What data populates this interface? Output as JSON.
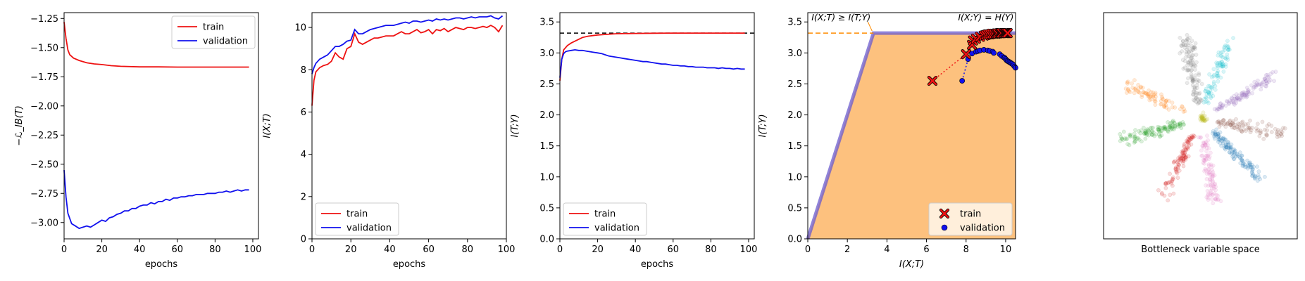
{
  "chart_data": [
    {
      "type": "line",
      "title": "",
      "xlabel": "epochs",
      "ylabel": "−ℒ_IB(T)",
      "xlim": [
        0,
        103
      ],
      "ylim": [
        -3.14,
        -1.2
      ],
      "xticks": [
        0,
        20,
        40,
        60,
        80,
        100
      ],
      "yticks": [
        -1.25,
        -1.5,
        -1.75,
        -2.0,
        -2.25,
        -2.5,
        -2.75,
        -3.0
      ],
      "ytick_labels": [
        "−1.25",
        "−1.50",
        "−1.75",
        "−2.00",
        "−2.25",
        "−2.50",
        "−2.75",
        "−3.00"
      ],
      "legend": "upper-right",
      "series": [
        {
          "name": "train",
          "color": "#ee1111",
          "x": [
            0,
            1,
            2,
            3,
            5,
            8,
            12,
            16,
            20,
            25,
            30,
            40,
            50,
            60,
            70,
            80,
            90,
            98
          ],
          "y": [
            -1.28,
            -1.42,
            -1.52,
            -1.56,
            -1.59,
            -1.61,
            -1.63,
            -1.64,
            -1.645,
            -1.655,
            -1.66,
            -1.665,
            -1.665,
            -1.667,
            -1.667,
            -1.667,
            -1.667,
            -1.667
          ]
        },
        {
          "name": "validation",
          "color": "#1111ee",
          "x": [
            0,
            1,
            2,
            4,
            6,
            8,
            10,
            12,
            14,
            16,
            18,
            20,
            22,
            24,
            26,
            28,
            30,
            32,
            34,
            36,
            38,
            40,
            42,
            44,
            46,
            48,
            50,
            52,
            54,
            56,
            58,
            60,
            62,
            64,
            66,
            68,
            70,
            72,
            74,
            76,
            78,
            80,
            82,
            84,
            86,
            88,
            90,
            92,
            94,
            96,
            98
          ],
          "y": [
            -2.55,
            -2.78,
            -2.92,
            -3.01,
            -3.03,
            -3.05,
            -3.04,
            -3.03,
            -3.04,
            -3.02,
            -3.0,
            -2.98,
            -2.99,
            -2.96,
            -2.95,
            -2.93,
            -2.92,
            -2.9,
            -2.9,
            -2.88,
            -2.88,
            -2.86,
            -2.85,
            -2.85,
            -2.83,
            -2.84,
            -2.82,
            -2.82,
            -2.8,
            -2.81,
            -2.79,
            -2.79,
            -2.78,
            -2.78,
            -2.77,
            -2.77,
            -2.76,
            -2.76,
            -2.76,
            -2.75,
            -2.75,
            -2.75,
            -2.74,
            -2.74,
            -2.73,
            -2.74,
            -2.73,
            -2.72,
            -2.73,
            -2.72,
            -2.72
          ]
        }
      ]
    },
    {
      "type": "line",
      "title": "",
      "xlabel": "epochs",
      "ylabel": "I(X;T)",
      "xlim": [
        0,
        100
      ],
      "ylim": [
        0,
        10.7
      ],
      "xticks": [
        0,
        20,
        40,
        60,
        80,
        100
      ],
      "yticks": [
        0,
        2,
        4,
        6,
        8,
        10
      ],
      "ytick_labels": [
        "0",
        "2",
        "4",
        "6",
        "8",
        "10"
      ],
      "legend": "lower-left",
      "series": [
        {
          "name": "train",
          "color": "#ee1111",
          "x": [
            0,
            1,
            2,
            4,
            6,
            8,
            10,
            12,
            14,
            16,
            18,
            20,
            22,
            24,
            26,
            28,
            30,
            32,
            34,
            36,
            38,
            40,
            42,
            44,
            46,
            48,
            50,
            52,
            54,
            56,
            58,
            60,
            62,
            64,
            66,
            68,
            70,
            72,
            74,
            76,
            78,
            80,
            82,
            84,
            86,
            88,
            90,
            92,
            94,
            96,
            98
          ],
          "y": [
            6.3,
            7.5,
            7.9,
            8.1,
            8.2,
            8.25,
            8.4,
            8.8,
            8.6,
            8.5,
            9.0,
            9.1,
            9.7,
            9.3,
            9.2,
            9.3,
            9.4,
            9.5,
            9.5,
            9.55,
            9.6,
            9.6,
            9.6,
            9.7,
            9.8,
            9.7,
            9.7,
            9.8,
            9.9,
            9.75,
            9.8,
            9.9,
            9.7,
            9.9,
            9.85,
            9.95,
            9.8,
            9.9,
            10.0,
            9.95,
            9.9,
            10.0,
            10.0,
            9.95,
            10.0,
            10.05,
            10.0,
            10.1,
            10.0,
            9.8,
            10.1
          ]
        },
        {
          "name": "validation",
          "color": "#1111ee",
          "x": [
            0,
            1,
            2,
            4,
            6,
            8,
            10,
            12,
            14,
            16,
            18,
            20,
            22,
            24,
            26,
            28,
            30,
            32,
            34,
            36,
            38,
            40,
            42,
            44,
            46,
            48,
            50,
            52,
            54,
            56,
            58,
            60,
            62,
            64,
            66,
            68,
            70,
            72,
            74,
            76,
            78,
            80,
            82,
            84,
            86,
            88,
            90,
            92,
            94,
            96,
            98
          ],
          "y": [
            7.8,
            8.1,
            8.3,
            8.5,
            8.6,
            8.7,
            8.9,
            9.1,
            9.1,
            9.2,
            9.35,
            9.4,
            9.9,
            9.7,
            9.7,
            9.8,
            9.9,
            9.95,
            10.0,
            10.05,
            10.1,
            10.1,
            10.1,
            10.15,
            10.2,
            10.25,
            10.2,
            10.3,
            10.3,
            10.25,
            10.3,
            10.35,
            10.3,
            10.4,
            10.35,
            10.4,
            10.35,
            10.4,
            10.45,
            10.45,
            10.4,
            10.45,
            10.5,
            10.45,
            10.5,
            10.5,
            10.5,
            10.55,
            10.45,
            10.4,
            10.55
          ]
        }
      ]
    },
    {
      "type": "line",
      "title": "",
      "xlabel": "epochs",
      "ylabel": "I(T;Y)",
      "xlim": [
        0,
        103
      ],
      "ylim": [
        0,
        3.65
      ],
      "xticks": [
        0,
        20,
        40,
        60,
        80,
        100
      ],
      "yticks": [
        0,
        0.5,
        1.0,
        1.5,
        2.0,
        2.5,
        3.0,
        3.5
      ],
      "ytick_labels": [
        "0.0",
        "0.5",
        "1.0",
        "1.5",
        "2.0",
        "2.5",
        "3.0",
        "3.5"
      ],
      "legend": "lower-left",
      "reference_line": {
        "y": 3.32,
        "style": "dashed",
        "color": "#000000"
      },
      "series": [
        {
          "name": "train",
          "color": "#ee1111",
          "x": [
            0,
            1,
            2,
            4,
            6,
            8,
            10,
            12,
            15,
            20,
            25,
            30,
            40,
            50,
            60,
            70,
            80,
            90,
            98
          ],
          "y": [
            2.55,
            2.9,
            3.05,
            3.12,
            3.16,
            3.19,
            3.22,
            3.25,
            3.27,
            3.29,
            3.3,
            3.31,
            3.315,
            3.318,
            3.32,
            3.32,
            3.32,
            3.32,
            3.32
          ]
        },
        {
          "name": "validation",
          "color": "#1111ee",
          "x": [
            0,
            1,
            2,
            3,
            4,
            6,
            8,
            10,
            12,
            14,
            16,
            18,
            20,
            22,
            24,
            26,
            28,
            30,
            32,
            34,
            36,
            38,
            40,
            42,
            44,
            46,
            48,
            50,
            52,
            54,
            56,
            58,
            60,
            62,
            64,
            66,
            68,
            70,
            72,
            74,
            76,
            78,
            80,
            82,
            84,
            86,
            88,
            90,
            92,
            94,
            96,
            98
          ],
          "y": [
            2.6,
            2.9,
            2.99,
            3.02,
            3.03,
            3.04,
            3.05,
            3.04,
            3.04,
            3.03,
            3.02,
            3.01,
            3.0,
            2.99,
            2.97,
            2.95,
            2.94,
            2.93,
            2.92,
            2.91,
            2.9,
            2.89,
            2.88,
            2.87,
            2.86,
            2.86,
            2.85,
            2.84,
            2.83,
            2.82,
            2.82,
            2.81,
            2.8,
            2.8,
            2.79,
            2.79,
            2.78,
            2.78,
            2.77,
            2.77,
            2.77,
            2.76,
            2.76,
            2.76,
            2.75,
            2.76,
            2.75,
            2.75,
            2.74,
            2.75,
            2.74,
            2.74
          ]
        }
      ]
    },
    {
      "type": "scatter",
      "title": "",
      "xlabel": "I(X;T)",
      "ylabel": "I(T;Y)",
      "xlim": [
        0,
        10.5
      ],
      "ylim": [
        0,
        3.65
      ],
      "xticks": [
        0,
        2,
        4,
        6,
        8,
        10
      ],
      "yticks": [
        0,
        0.5,
        1.0,
        1.5,
        2.0,
        2.5,
        3.0,
        3.5
      ],
      "ytick_labels": [
        "0.0",
        "0.5",
        "1.0",
        "1.5",
        "2.0",
        "2.5",
        "3.0",
        "3.5"
      ],
      "legend": "lower-right",
      "hy": 3.32,
      "region_color": "#fdc17e",
      "boundary_color": "#6a5acd",
      "hline_color": "#ff8c00",
      "annotations": [
        {
          "text": "I(X;T) ≥ I(T;Y)",
          "color": "#ff8c00"
        },
        {
          "text": "I(X;Y) = H(Y)",
          "color": "#ff8c00"
        }
      ],
      "series": [
        {
          "name": "train",
          "marker": "x",
          "color": "#ee1111",
          "x": [
            6.3,
            8.0,
            8.3,
            8.35,
            8.5,
            8.7,
            8.9,
            9.0,
            9.1,
            9.2,
            9.3,
            9.4,
            9.5,
            9.55,
            9.6,
            9.7,
            9.75,
            9.8,
            9.9,
            9.95,
            10.0,
            10.05,
            10.1
          ],
          "y": [
            2.55,
            2.98,
            3.13,
            3.2,
            3.23,
            3.26,
            3.28,
            3.29,
            3.3,
            3.3,
            3.31,
            3.31,
            3.31,
            3.315,
            3.315,
            3.32,
            3.32,
            3.32,
            3.32,
            3.32,
            3.32,
            3.32,
            3.32
          ]
        },
        {
          "name": "validation",
          "marker": "o",
          "color": "#1111ee",
          "x": [
            7.8,
            8.1,
            8.3,
            8.5,
            8.6,
            8.7,
            8.9,
            9.1,
            9.2,
            9.35,
            9.4,
            9.7,
            9.8,
            9.9,
            9.95,
            10.0,
            10.05,
            10.1,
            10.15,
            10.2,
            10.25,
            10.3,
            10.35,
            10.4,
            10.45,
            10.5
          ],
          "y": [
            2.55,
            2.9,
            2.99,
            3.02,
            3.03,
            3.04,
            3.05,
            3.04,
            3.03,
            3.02,
            3.0,
            2.98,
            2.95,
            2.93,
            2.92,
            2.9,
            2.88,
            2.87,
            2.86,
            2.85,
            2.84,
            2.83,
            2.82,
            2.8,
            2.78,
            2.76
          ]
        }
      ]
    },
    {
      "type": "scatter",
      "title": "",
      "xlabel": "Bottleneck variable space",
      "ylabel": "",
      "axes_ticks": false,
      "clusters": [
        {
          "color": "#7f7f7f",
          "angle_deg": 100,
          "n": 120
        },
        {
          "color": "#17becf",
          "angle_deg": 70,
          "n": 90
        },
        {
          "color": "#9467bd",
          "angle_deg": 30,
          "n": 100
        },
        {
          "color": "#8c564b",
          "angle_deg": -10,
          "n": 90
        },
        {
          "color": "#1f77b4",
          "angle_deg": -45,
          "n": 120
        },
        {
          "color": "#e377c2",
          "angle_deg": -80,
          "n": 100
        },
        {
          "color": "#d62728",
          "angle_deg": -115,
          "n": 110
        },
        {
          "color": "#2ca02c",
          "angle_deg": -165,
          "n": 120
        },
        {
          "color": "#ff7f0e",
          "angle_deg": 155,
          "n": 80
        },
        {
          "color": "#bcbd22",
          "angle_deg": 0,
          "n": 30
        }
      ]
    }
  ]
}
